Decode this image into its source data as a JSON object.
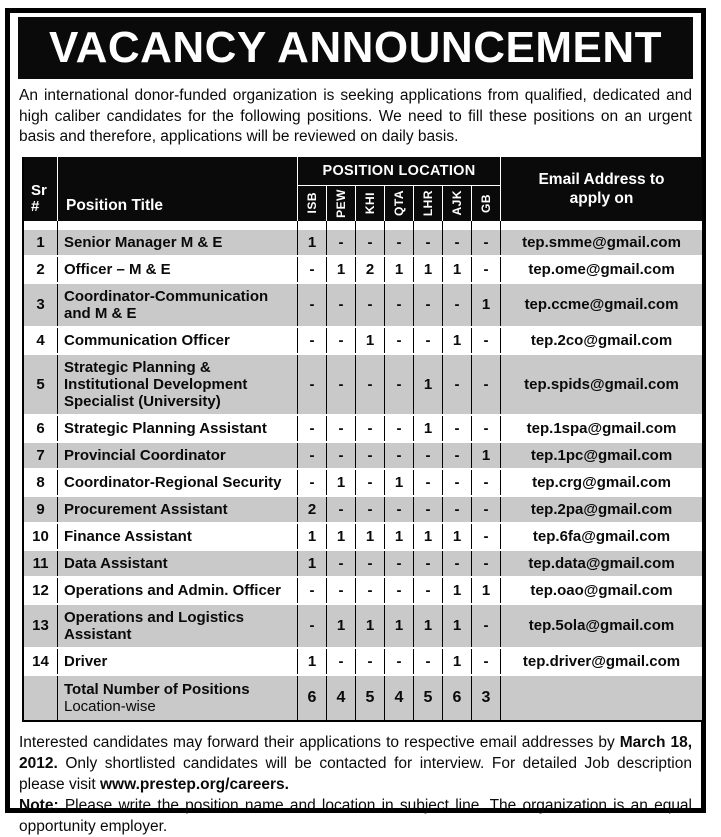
{
  "title": "VACANCY ANNOUNCEMENT",
  "intro": "An international donor-funded organization is seeking applications from qualified, dedicated and high caliber candidates for the following positions.  We need to fill these positions on an urgent basis and therefore, applications will be reviewed on daily basis.",
  "table": {
    "header": {
      "sr_line1": "Sr",
      "sr_line2": "#",
      "position_title": "Position Title",
      "position_location": "POSITION LOCATION",
      "locations": [
        "ISB",
        "PEW",
        "KHI",
        "QTA",
        "LHR",
        "AJK",
        "GB"
      ],
      "email": "Email Address to apply on"
    },
    "rows": [
      {
        "sr": "1",
        "title": "Senior Manager M & E",
        "counts": [
          "1",
          "-",
          "-",
          "-",
          "-",
          "-",
          "-"
        ],
        "email": "tep.smme@gmail.com"
      },
      {
        "sr": "2",
        "title": "Officer – M & E",
        "counts": [
          "-",
          "1",
          "2",
          "1",
          "1",
          "1",
          "-"
        ],
        "email": "tep.ome@gmail.com"
      },
      {
        "sr": "3",
        "title": "Coordinator-Communication and M & E",
        "counts": [
          "-",
          "-",
          "-",
          "-",
          "-",
          "-",
          "1"
        ],
        "email": "tep.ccme@gmail.com"
      },
      {
        "sr": "4",
        "title": "Communication Officer",
        "counts": [
          "-",
          "-",
          "1",
          "-",
          "-",
          "1",
          "-"
        ],
        "email": "tep.2co@gmail.com"
      },
      {
        "sr": "5",
        "title": "Strategic Planning & Institutional Development Specialist (University)",
        "counts": [
          "-",
          "-",
          "-",
          "-",
          "1",
          "-",
          "-"
        ],
        "email": "tep.spids@gmail.com"
      },
      {
        "sr": "6",
        "title": "Strategic Planning Assistant",
        "counts": [
          "-",
          "-",
          "-",
          "-",
          "1",
          "-",
          "-"
        ],
        "email": "tep.1spa@gmail.com"
      },
      {
        "sr": "7",
        "title": "Provincial Coordinator",
        "counts": [
          "-",
          "-",
          "-",
          "-",
          "-",
          "-",
          "1"
        ],
        "email": "tep.1pc@gmail.com"
      },
      {
        "sr": "8",
        "title": "Coordinator-Regional Security",
        "counts": [
          "-",
          "1",
          "-",
          "1",
          "-",
          "-",
          "-"
        ],
        "email": "tep.crg@gmail.com"
      },
      {
        "sr": "9",
        "title": "Procurement Assistant",
        "counts": [
          "2",
          "-",
          "-",
          "-",
          "-",
          "-",
          "-"
        ],
        "email": "tep.2pa@gmail.com"
      },
      {
        "sr": "10",
        "title": "Finance Assistant",
        "counts": [
          "1",
          "1",
          "1",
          "1",
          "1",
          "1",
          "-"
        ],
        "email": "tep.6fa@gmail.com"
      },
      {
        "sr": "11",
        "title": "Data Assistant",
        "counts": [
          "1",
          "-",
          "-",
          "-",
          "-",
          "-",
          "-"
        ],
        "email": "tep.data@gmail.com"
      },
      {
        "sr": "12",
        "title": "Operations and Admin. Officer",
        "counts": [
          "-",
          "-",
          "-",
          "-",
          "-",
          "1",
          "1"
        ],
        "email": "tep.oao@gmail.com"
      },
      {
        "sr": "13",
        "title": "Operations and Logistics Assistant",
        "counts": [
          "-",
          "1",
          "1",
          "1",
          "1",
          "1",
          "-"
        ],
        "email": "tep.5ola@gmail.com"
      },
      {
        "sr": "14",
        "title": "Driver",
        "counts": [
          "1",
          "-",
          "-",
          "-",
          "-",
          "1",
          "-"
        ],
        "email": "tep.driver@gmail.com"
      }
    ],
    "total": {
      "label_main": "Total Number of Positions",
      "label_sub": "Location-wise",
      "counts": [
        "6",
        "4",
        "5",
        "4",
        "5",
        "6",
        "3"
      ],
      "email": ""
    }
  },
  "footer": {
    "p1": [
      {
        "t": "Interested candidates may forward their applications to respective email addresses by ",
        "b": 0
      },
      {
        "t": "March 18, 2012.",
        "b": 1
      },
      {
        "t": " Only shortlisted candidates will be contacted for interview. For detailed Job description please visit ",
        "b": 0
      },
      {
        "t": "www.prestep.org/careers.",
        "b": 1
      }
    ],
    "p2": [
      {
        "t": "Note:",
        "b": 1
      },
      {
        "t": " Please write the position name and location in subject line. The organization is an equal opportunity employer.",
        "b": 0
      }
    ]
  },
  "colors": {
    "header_bg": "#0a0a0a",
    "header_text": "#ffffff",
    "row_shade": "#c9c9c9",
    "row_plain": "#ffffff",
    "frame_border": "#000000"
  }
}
